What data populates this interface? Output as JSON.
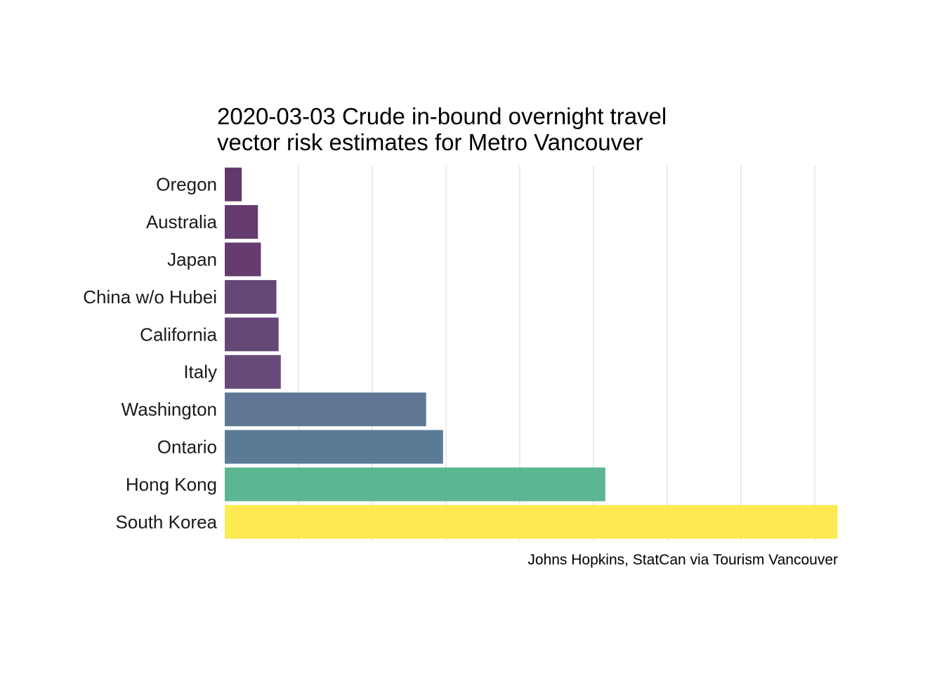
{
  "chart_data": {
    "type": "bar",
    "orientation": "horizontal",
    "title": "2020-03-03 Crude in-bound overnight travel",
    "subtitle": "vector risk estimates for Metro Vancouver",
    "caption": "Johns Hopkins, StatCan via Tourism Vancouver",
    "xlabel": "",
    "ylabel": "",
    "categories": [
      "Oregon",
      "Australia",
      "Japan",
      "China w/o Hubei",
      "California",
      "Italy",
      "Washington",
      "Ontario",
      "Hong Kong",
      "South Korea"
    ],
    "values": [
      0.23,
      0.45,
      0.49,
      0.7,
      0.73,
      0.76,
      2.73,
      2.96,
      5.16,
      8.31
    ],
    "colors": [
      "#5b2d65",
      "#5d3068",
      "#5d3068",
      "#5d3d6f",
      "#5e3e70",
      "#5f4072",
      "#56708f",
      "#52738f",
      "#52b28b",
      "#fde94a"
    ],
    "xlim": [
      0,
      8.31
    ],
    "gridlines_x": [
      1,
      2,
      3,
      4,
      5,
      6,
      7,
      8
    ],
    "grid": true,
    "legend": "none"
  }
}
